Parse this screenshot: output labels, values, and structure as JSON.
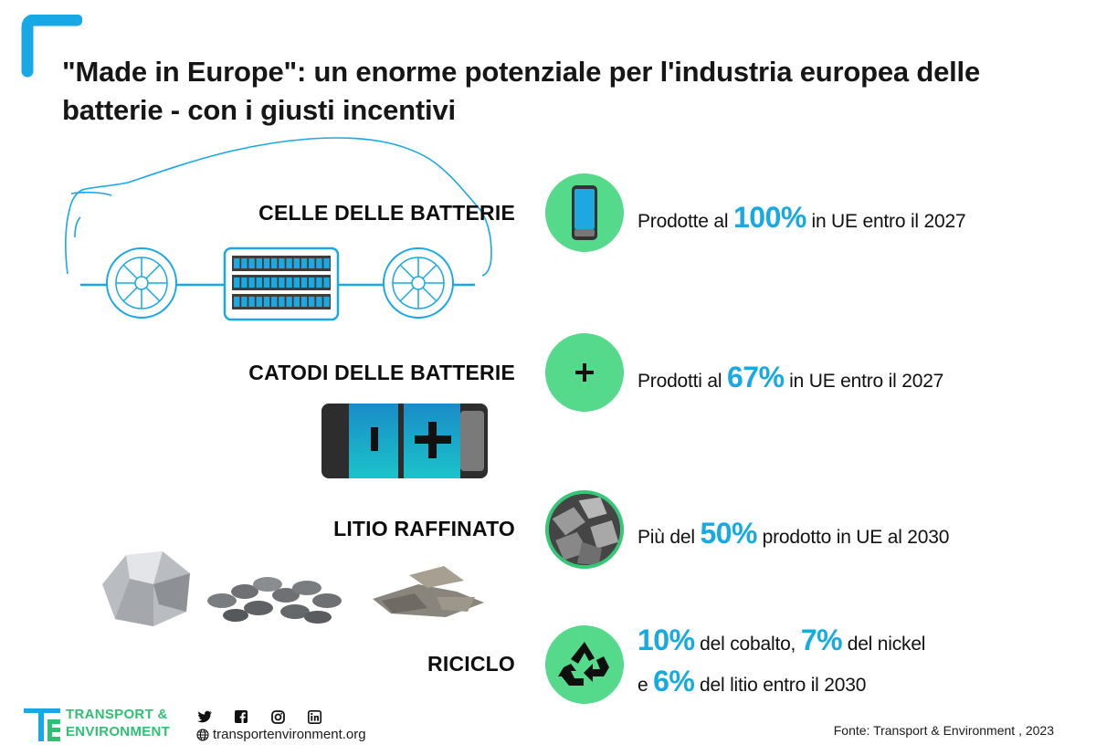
{
  "title": "\"Made in Europe\": un enorme potenziale per l'industria europea delle batterie - con i giusti incentivi",
  "sections": [
    {
      "label": "CELLE DELLE BATTERIE",
      "icon": "battery-cell-icon",
      "stat_pre": "Prodotte al ",
      "stat_value": "100%",
      "stat_post": " in UE entro il 2027"
    },
    {
      "label": "CATODI DELLE BATTERIE",
      "icon": "plus-icon",
      "stat_pre": "Prodotti al ",
      "stat_value": "67%",
      "stat_post": " in UE entro il 2027"
    },
    {
      "label": "LITIO RAFFINATO",
      "icon": "lithium-photo-icon",
      "stat_pre": "Più del ",
      "stat_value": "50%",
      "stat_post": " prodotto in UE al 2030"
    },
    {
      "label": "RICICLO",
      "icon": "recycle-icon",
      "line1_value1": "10%",
      "line1_text1": " del cobalto, ",
      "line1_value2": "7%",
      "line1_text2": " del nickel",
      "line2_pre": "e ",
      "line2_value": "6%",
      "line2_post": " del litio entro il 2030"
    }
  ],
  "footer": {
    "logo_line1": "TRANSPORT &",
    "logo_line2": "ENVIRONMENT",
    "website": "transportenvironment.org",
    "source": "Fonte: Transport & Environment , 2023",
    "socials": [
      "twitter-icon",
      "facebook-icon",
      "instagram-icon",
      "linkedin-icon"
    ]
  },
  "colors": {
    "accent_blue": "#17a9e2",
    "accent_green": "#55d98b",
    "logo_green": "#2fc074"
  }
}
